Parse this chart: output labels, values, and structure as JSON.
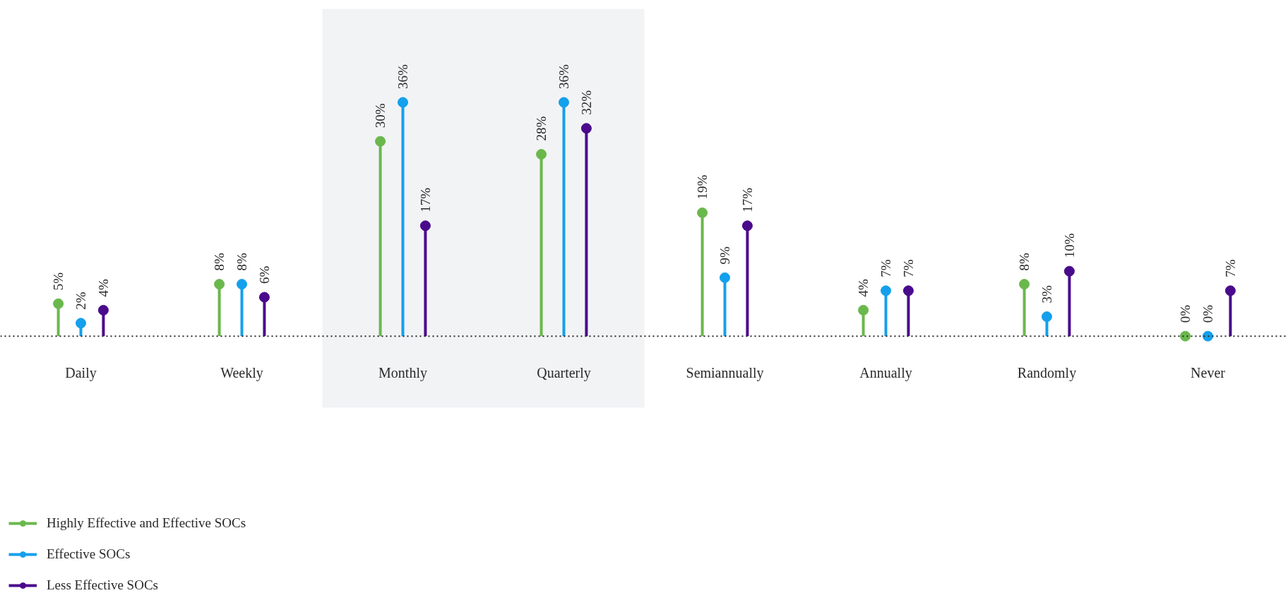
{
  "chart_data": {
    "type": "lollipop",
    "categories": [
      "Daily",
      "Weekly",
      "Monthly",
      "Quarterly",
      "Semiannually",
      "Annually",
      "Randomly",
      "Never"
    ],
    "series": [
      {
        "name": "Highly Effective and Effective SOCs",
        "color": "#6ab84c",
        "values": [
          5,
          8,
          30,
          28,
          19,
          4,
          8,
          0
        ],
        "value_labels": [
          "5%",
          "8%",
          "30%",
          "28%",
          "19%",
          "4%",
          "8%",
          "0%"
        ]
      },
      {
        "name": "Effective SOCs",
        "color": "#14a0ec",
        "values": [
          2,
          8,
          36,
          36,
          9,
          7,
          3,
          0
        ],
        "value_labels": [
          "2%",
          "8%",
          "36%",
          "36%",
          "9%",
          "7%",
          "3%",
          "0%"
        ]
      },
      {
        "name": "Less Effective SOCs",
        "color": "#4a0a8c",
        "values": [
          4,
          6,
          17,
          32,
          17,
          7,
          10,
          7
        ],
        "value_labels": [
          "4%",
          "6%",
          "17%",
          "32%",
          "17%",
          "7%",
          "10%",
          "7%"
        ]
      }
    ],
    "bands": [
      {
        "axis": "x",
        "from": "Monthly",
        "to": "Quarterly",
        "color": "#f2f3f5"
      }
    ],
    "legend": "bottom left",
    "marker": "circle"
  }
}
